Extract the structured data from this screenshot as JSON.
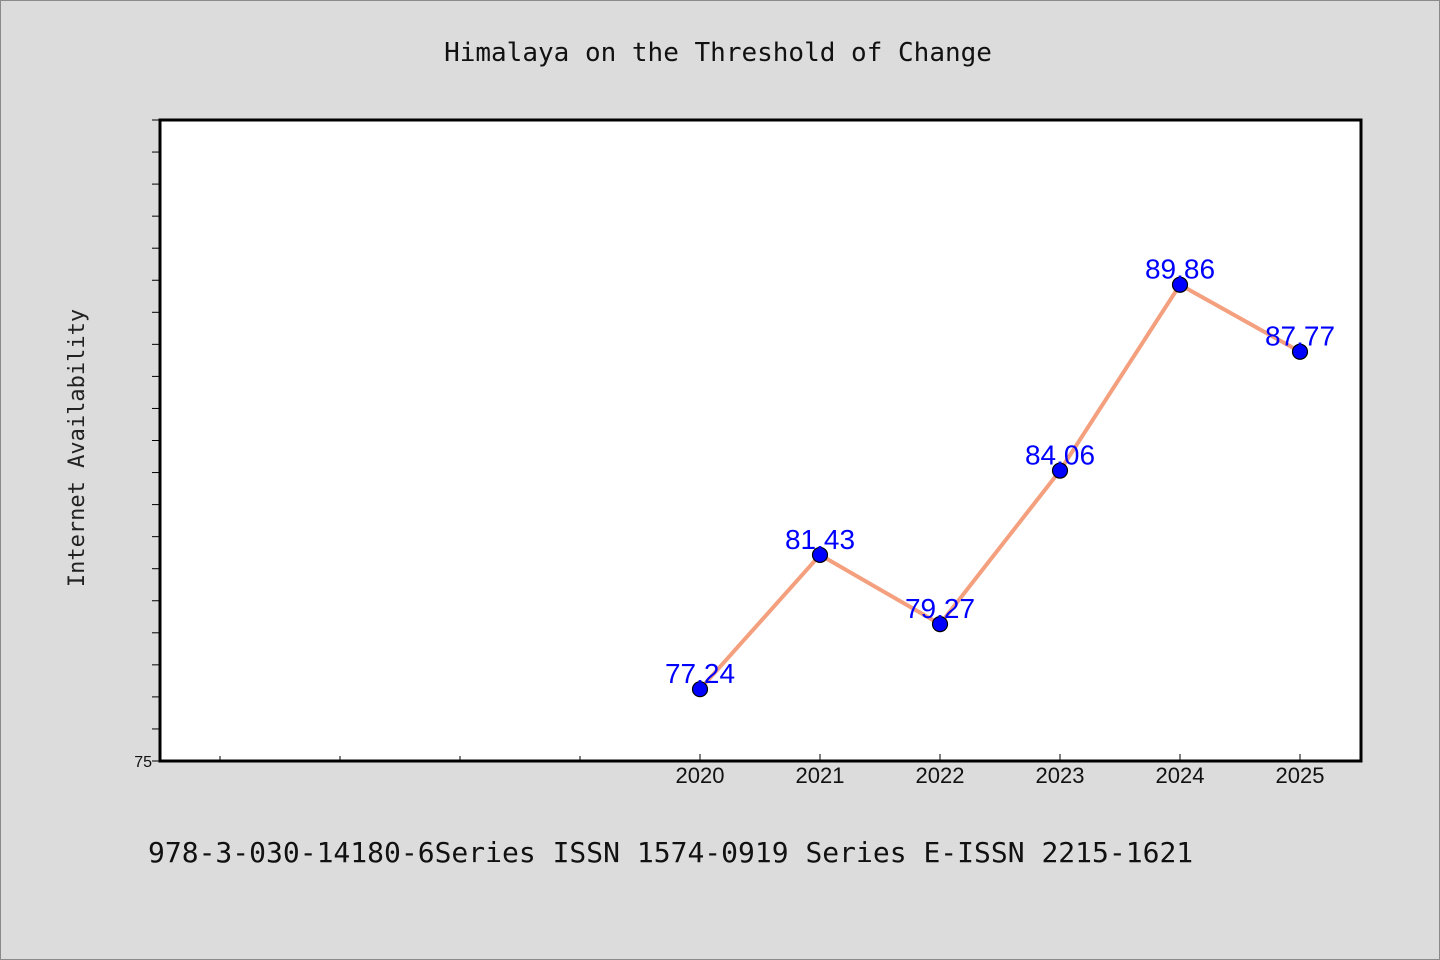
{
  "chart_data": {
    "type": "line",
    "title": "Himalaya on the Threshold of Change",
    "xlabel": "",
    "ylabel": "Internet Availability",
    "categories": [
      "2020",
      "2021",
      "2022",
      "2023",
      "2024",
      "2025"
    ],
    "series": [
      {
        "values": [
          77.24,
          81.43,
          79.27,
          84.06,
          89.86,
          87.77
        ],
        "labels": [
          "77.24",
          "81.43",
          "79.27",
          "84.06",
          "89.86",
          "87.77"
        ]
      }
    ],
    "ylim": [
      75,
      95
    ],
    "yticks": [
      {
        "value": 75,
        "label": "75"
      }
    ],
    "line_color": "#f4a07e",
    "marker_color": "#0000ff",
    "grid": false,
    "legend": "none"
  },
  "footer": {
    "text": "978-3-030-14180-6Series ISSN 1574-0919 Series E-ISSN 2215-1621"
  },
  "colors": {
    "background": "#dcdcdc",
    "plot_background": "#ffffff",
    "axis": "#000000",
    "label": "#0000ff"
  }
}
